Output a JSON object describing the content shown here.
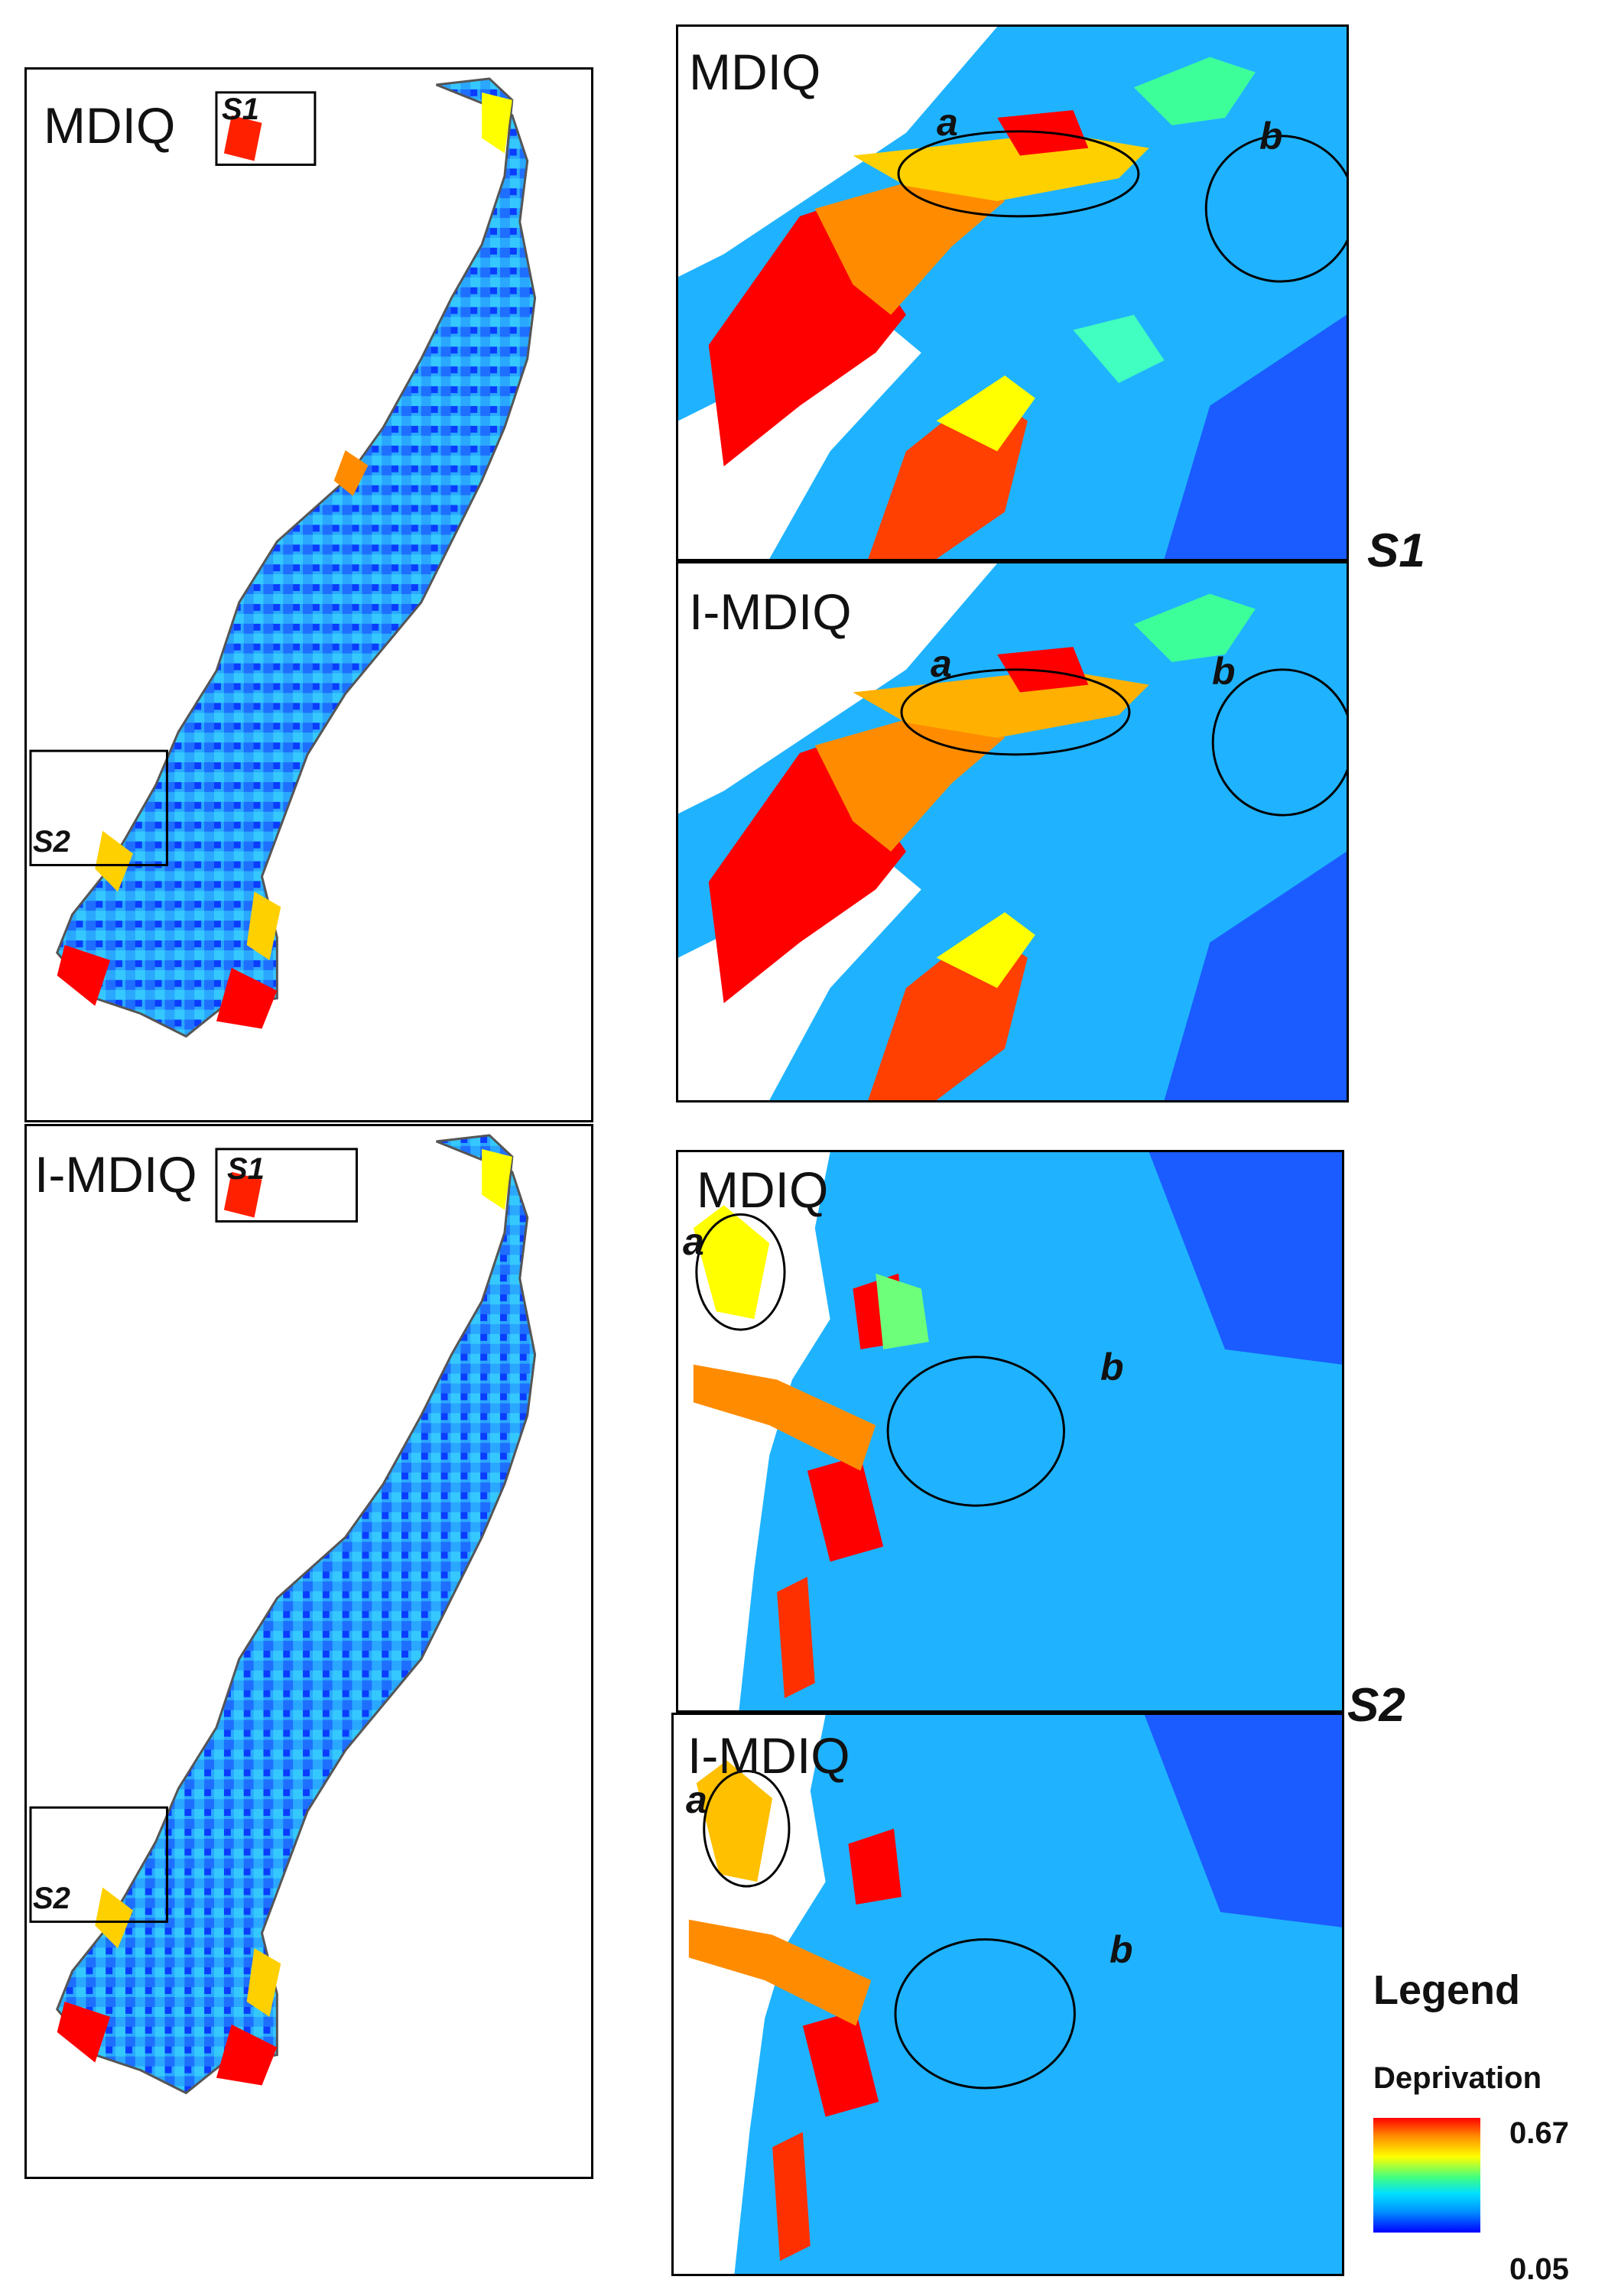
{
  "colors": {
    "red": "#ff0000",
    "orange": "#ff8c00",
    "yellow": "#ffff00",
    "green": "#40ff80",
    "cyan": "#00e0ff",
    "blue": "#0090ff",
    "deep_blue": "#0000ff"
  },
  "panels": {
    "overview_top": {
      "title": "MDIQ",
      "box_s1": "S1",
      "box_s2": "S2"
    },
    "overview_bottom": {
      "title": "I-MDIQ",
      "box_s1": "S1",
      "box_s2": "S2"
    },
    "s1_top": {
      "title": "MDIQ",
      "a": "a",
      "b": "b"
    },
    "s1_bottom": {
      "title": "I-MDIQ",
      "a": "a",
      "b": "b"
    },
    "s2_top": {
      "title": "MDIQ",
      "a": "a",
      "b": "b"
    },
    "s2_bottom": {
      "title": "I-MDIQ",
      "a": "a",
      "b": "b"
    }
  },
  "group_labels": {
    "s1": "S1",
    "s2": "S2"
  },
  "legend": {
    "title": "Legend",
    "variable": "Deprivation",
    "max_value": "0.67",
    "min_value": "0.05"
  }
}
